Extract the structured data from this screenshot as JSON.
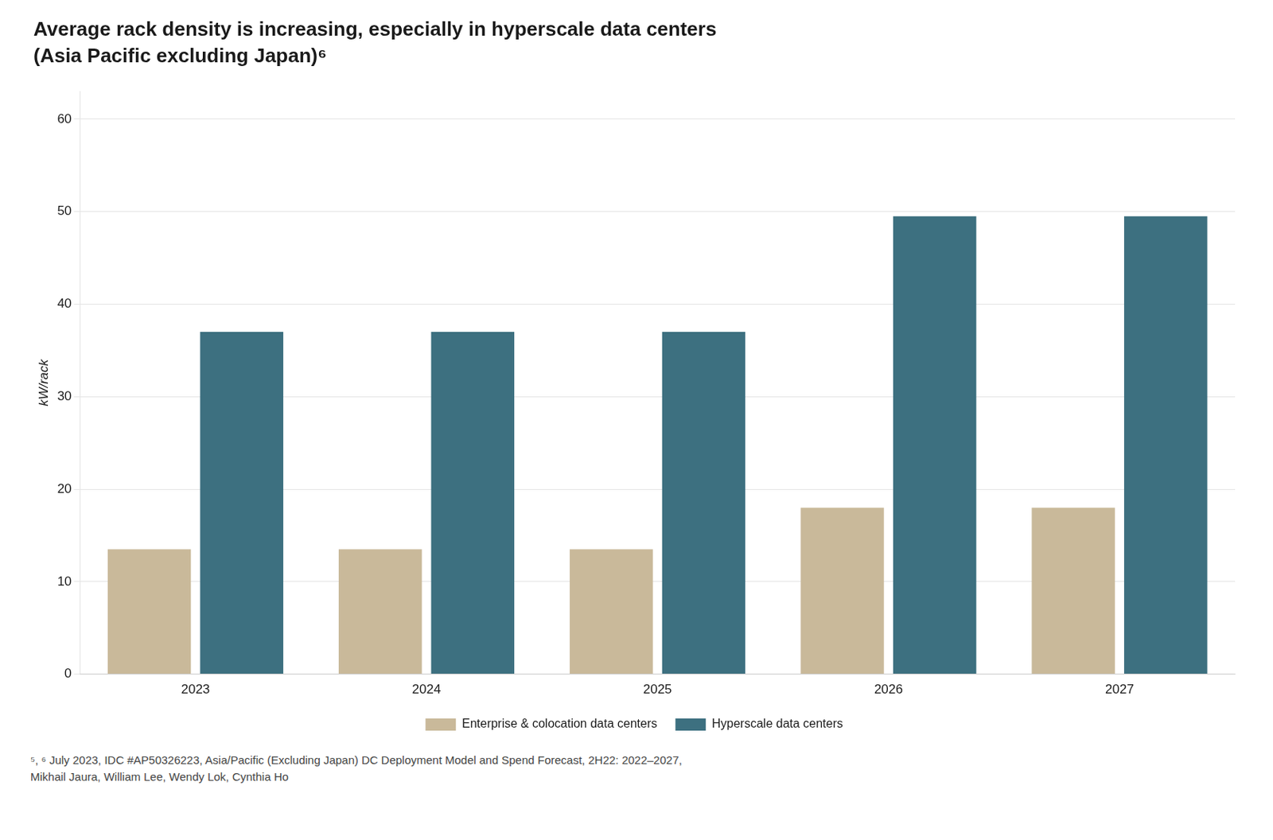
{
  "chart_data": {
    "type": "bar",
    "title": "Average rack density is increasing, especially in hyperscale data centers",
    "subtitle": "(Asia Pacific excluding Japan)⁶",
    "categories": [
      "2023",
      "2024",
      "2025",
      "2026",
      "2027"
    ],
    "series": [
      {
        "name": "Enterprise & colocation data centers",
        "color": "#C9B99A",
        "values": [
          13.5,
          13.5,
          13.5,
          18.0,
          18.0
        ]
      },
      {
        "name": "Hyperscale data centers",
        "color": "#3D7080",
        "values": [
          37.0,
          37.0,
          37.0,
          49.5,
          49.5
        ]
      }
    ],
    "ylabel": "kW/rack",
    "ylim": [
      0,
      63
    ],
    "yticks": [
      0,
      10,
      20,
      30,
      40,
      50,
      60
    ],
    "grid": true,
    "legend": "bottom",
    "annotations": [
      "⁵, ⁶ July 2023, IDC #AP50326223, Asia/Pacific (Excluding Japan) DC Deployment Model and Spend Forecast, 2H22: 2022–2027,",
      "Mikhail Jaura, William Lee, Wendy Lok, Cynthia Ho"
    ]
  }
}
